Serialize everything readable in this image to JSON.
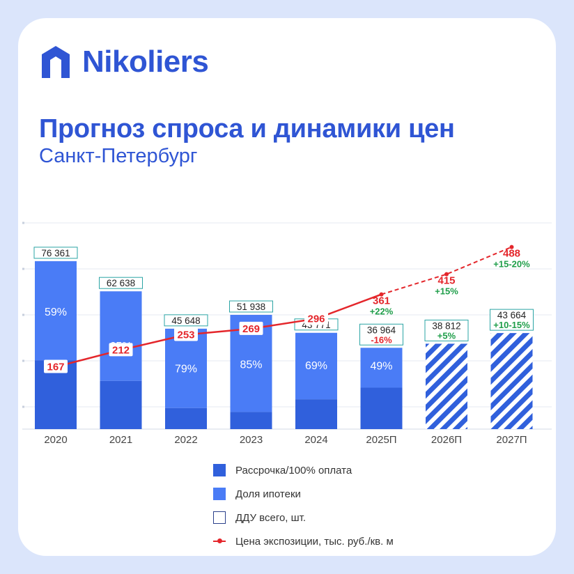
{
  "brand": {
    "name": "Nikoliers",
    "color": "#2f55d4"
  },
  "title": "Прогноз спроса и динамики цен",
  "subtitle": "Санкт-Петербург",
  "colors": {
    "cash": "#3060dc",
    "mortgage": "#4a7cf6",
    "hatch": "#3060dc",
    "price": "#e4262b",
    "growth": "#1f9e4a",
    "decline": "#e4262b"
  },
  "legend": [
    {
      "label": "Рассрочка/100% оплата",
      "type": "cash"
    },
    {
      "label": "Доля ипотеки",
      "type": "mortgage"
    },
    {
      "label": "ДДУ всего, шт.",
      "type": "forecast"
    },
    {
      "label": "Цена экспозиции, тыс. руб./кв. м",
      "type": "price"
    }
  ],
  "chart_data": {
    "type": "bar",
    "categories": [
      "2020",
      "2021",
      "2022",
      "2023",
      "2024",
      "2025П",
      "2026П",
      "2027П"
    ],
    "ddu_total": [
      76361,
      62638,
      45648,
      51938,
      43771,
      36964,
      38812,
      43664
    ],
    "ddu_total_labels": [
      "76 361",
      "62 638",
      "45 648",
      "51 938",
      "43 771",
      "36 964",
      "38 812",
      "43 664"
    ],
    "ddu_change_labels": [
      "",
      "",
      "",
      "",
      "",
      "-16%",
      "+5%",
      "+10-15%"
    ],
    "mortgage_share_pct": [
      59,
      65,
      79,
      85,
      69,
      49,
      null,
      null
    ],
    "mortgage_share_labels": [
      "59%",
      "65%",
      "79%",
      "85%",
      "69%",
      "49%",
      "",
      ""
    ],
    "forecast": [
      false,
      false,
      false,
      false,
      false,
      false,
      true,
      true
    ],
    "price": [
      167,
      212,
      253,
      269,
      296,
      361,
      415,
      488
    ],
    "price_labels": [
      "167",
      "212",
      "253",
      "269",
      "296",
      "361",
      "415",
      "488"
    ],
    "price_change_labels": [
      "",
      "",
      "",
      "",
      "",
      "+22%",
      "+15%",
      "+15-20%"
    ],
    "price_forecast_from_index": 5,
    "ylim": [
      0,
      95000
    ],
    "price_ylim": [
      0,
      560
    ],
    "grid": true
  }
}
